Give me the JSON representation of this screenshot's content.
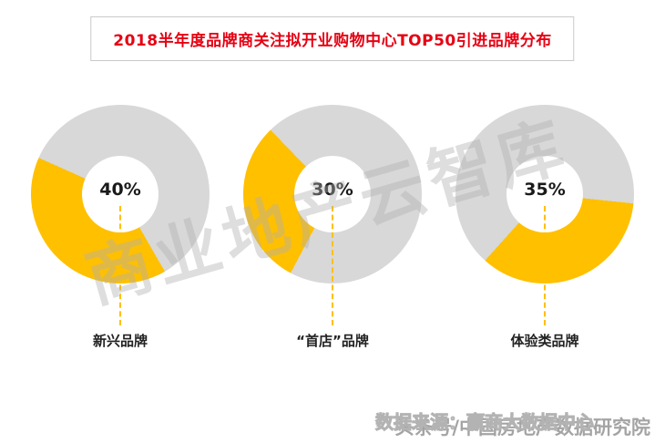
{
  "title": "2018半年度品牌商关注拟开业购物中心TOP50引进品牌分布",
  "colors": {
    "accent": "#FFC000",
    "track": "#D8D8D8",
    "title_red": "#E60012"
  },
  "chart_data": {
    "type": "pie",
    "style": "donut",
    "unit": "%",
    "title": "2018半年度品牌商关注拟开业购物中心TOP50引进品牌分布",
    "legend_position": "none",
    "charts": [
      {
        "label": "新兴品牌",
        "value": 40,
        "display": "40%",
        "start_angle": 150
      },
      {
        "label": "“首店”品牌",
        "value": 30,
        "display": "30%",
        "start_angle": 208
      },
      {
        "label": "体验类品牌",
        "value": 35,
        "display": "35%",
        "start_angle": 96
      }
    ]
  },
  "watermarks": {
    "diagonal": "商业地产云智库",
    "source": "数据来源：赢商大数据中心",
    "channel": "头条号/中国房地产数据研究院"
  }
}
